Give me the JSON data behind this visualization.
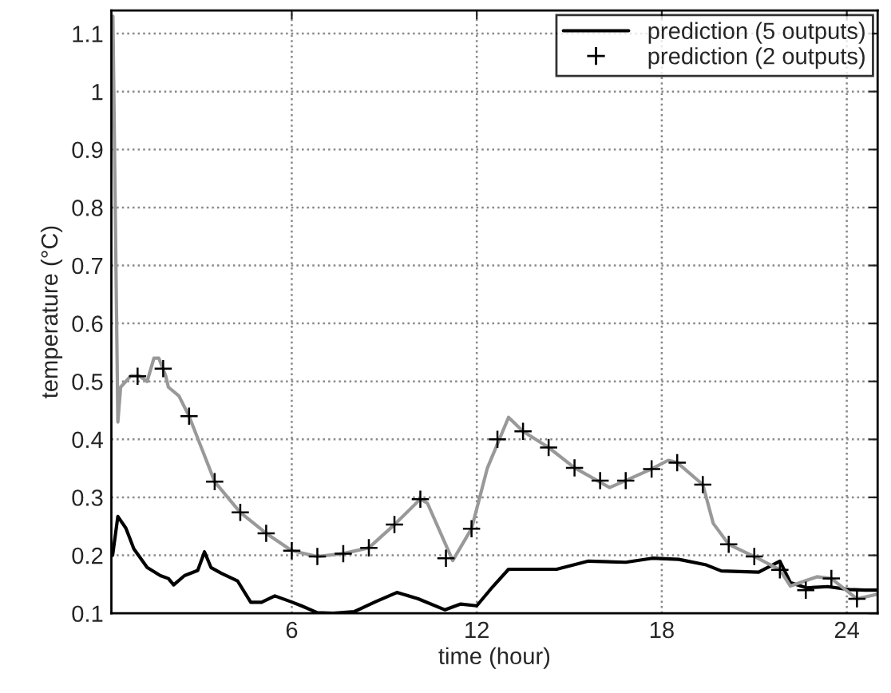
{
  "chart_data": {
    "type": "line",
    "xlabel": "time (hour)",
    "ylabel": "temperature (°C)",
    "xlim": [
      0.15,
      25
    ],
    "ylim": [
      0.1,
      1.14
    ],
    "xticks": [
      6,
      12,
      18,
      24
    ],
    "yticks": [
      0.1,
      0.2,
      0.3,
      0.4,
      0.5,
      0.6,
      0.7,
      0.8,
      0.9,
      {
        "value": 1,
        "label": "1"
      },
      1.1
    ],
    "grid": true,
    "legend": "top right",
    "series": [
      {
        "name": "prediction (5 outputs)",
        "color": "#000000",
        "line_style": "solid",
        "marker": "none",
        "x": [
          0.19,
          0.36,
          0.62,
          0.88,
          1.31,
          1.74,
          2.0,
          2.17,
          2.52,
          2.95,
          3.17,
          3.38,
          3.72,
          4.24,
          4.67,
          5.02,
          5.45,
          5.97,
          6.31,
          6.83,
          7.34,
          8.03,
          8.72,
          9.41,
          10.1,
          10.97,
          11.48,
          12.0,
          12.52,
          13.03,
          13.72,
          14.59,
          15.62,
          16.83,
          17.69,
          18.55,
          19.41,
          19.93,
          21.14,
          21.83,
          22.17,
          22.69,
          23.38,
          24.07,
          24.59,
          25.0
        ],
        "values": [
          0.2,
          0.267,
          0.247,
          0.211,
          0.179,
          0.165,
          0.16,
          0.149,
          0.165,
          0.174,
          0.206,
          0.179,
          0.169,
          0.156,
          0.119,
          0.119,
          0.13,
          0.12,
          0.113,
          0.101,
          0.1,
          0.103,
          0.12,
          0.136,
          0.125,
          0.106,
          0.116,
          0.113,
          0.146,
          0.176,
          0.176,
          0.176,
          0.19,
          0.188,
          0.195,
          0.193,
          0.184,
          0.173,
          0.171,
          0.19,
          0.153,
          0.144,
          0.146,
          0.141,
          0.14,
          0.14
        ]
      },
      {
        "color": "#999999",
        "line_style": "solid",
        "marker": "none",
        "x": [
          0.2,
          0.36,
          0.45,
          0.79,
          1.05,
          1.31,
          1.53,
          1.69,
          1.91,
          2.0,
          2.34,
          2.67,
          3.5,
          4.33,
          5.17,
          6.0,
          6.83,
          7.67,
          8.5,
          9.33,
          10.17,
          10.4,
          11.22,
          11.83,
          12.34,
          13.03,
          13.5,
          14.33,
          15.17,
          16.31,
          16.83,
          17.67,
          18.21,
          18.5,
          19.33,
          19.67,
          20.17,
          21.0,
          21.83,
          22.17,
          23.03,
          23.5,
          24.33,
          25.0
        ],
        "values": [
          1.13,
          0.43,
          0.49,
          0.51,
          0.51,
          0.5,
          0.54,
          0.54,
          0.51,
          0.49,
          0.475,
          0.44,
          0.327,
          0.274,
          0.238,
          0.208,
          0.198,
          0.203,
          0.213,
          0.253,
          0.297,
          0.29,
          0.191,
          0.246,
          0.35,
          0.438,
          0.414,
          0.386,
          0.351,
          0.317,
          0.329,
          0.349,
          0.364,
          0.36,
          0.322,
          0.255,
          0.219,
          0.198,
          0.175,
          0.147,
          0.163,
          0.16,
          0.125,
          0.133
        ]
      },
      {
        "name": "prediction (2 outputs)",
        "type": "scatter",
        "color": "#000000",
        "marker": "cross",
        "x": [
          1.0,
          1.83,
          2.67,
          3.5,
          4.33,
          5.17,
          6.0,
          6.83,
          7.67,
          8.5,
          9.33,
          10.17,
          11.0,
          11.83,
          12.67,
          13.5,
          14.33,
          15.17,
          16.0,
          16.83,
          17.67,
          18.5,
          19.33,
          20.17,
          21.0,
          21.83,
          22.67,
          23.5,
          24.33
        ],
        "values": [
          0.509,
          0.522,
          0.44,
          0.327,
          0.274,
          0.238,
          0.208,
          0.198,
          0.203,
          0.213,
          0.253,
          0.297,
          0.195,
          0.246,
          0.4,
          0.414,
          0.386,
          0.351,
          0.329,
          0.329,
          0.349,
          0.36,
          0.322,
          0.219,
          0.198,
          0.175,
          0.14,
          0.16,
          0.125
        ]
      }
    ]
  }
}
